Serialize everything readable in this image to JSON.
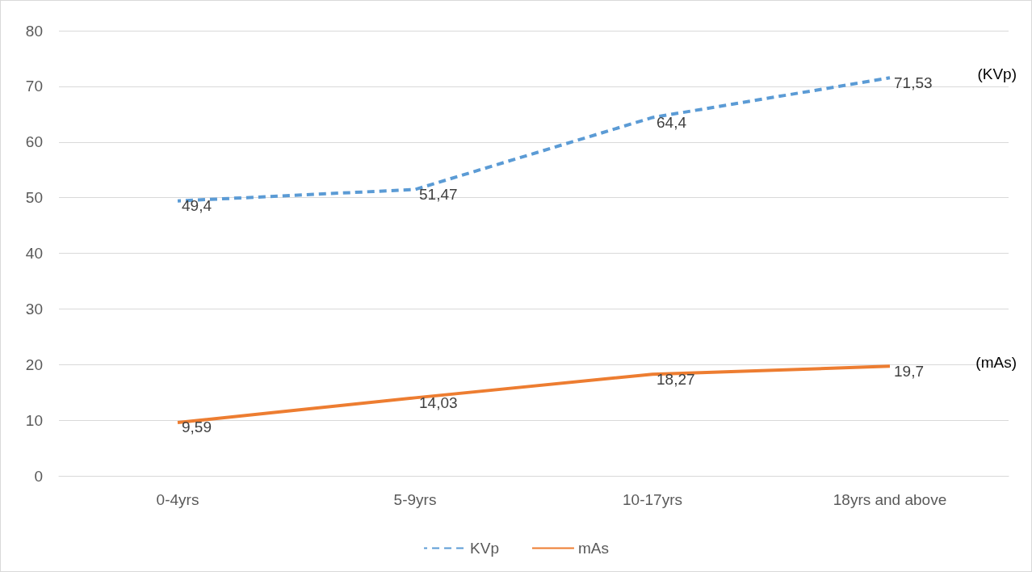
{
  "chart_data": {
    "type": "line",
    "categories": [
      "0-4yrs",
      "5-9yrs",
      "10-17yrs",
      "18yrs and above"
    ],
    "series": [
      {
        "name": "KVp",
        "color": "#5b9bd5",
        "line_style": "dashed",
        "values": [
          49.4,
          51.47,
          64.4,
          71.53
        ],
        "value_labels": [
          "49,4",
          "51,47",
          "64,4",
          "71,53"
        ]
      },
      {
        "name": "mAs",
        "color": "#ed7d31",
        "line_style": "solid",
        "values": [
          9.59,
          14.03,
          18.27,
          19.7
        ],
        "value_labels": [
          "9,59",
          "14,03",
          "18,27",
          "19,7"
        ]
      }
    ],
    "ylim": [
      0,
      80
    ],
    "yticks": [
      0,
      10,
      20,
      30,
      40,
      50,
      60,
      70,
      80
    ],
    "grid": "y",
    "legend": "bottom",
    "marker": "none",
    "annotations": [
      "(KVp)",
      "(mAs)"
    ]
  }
}
